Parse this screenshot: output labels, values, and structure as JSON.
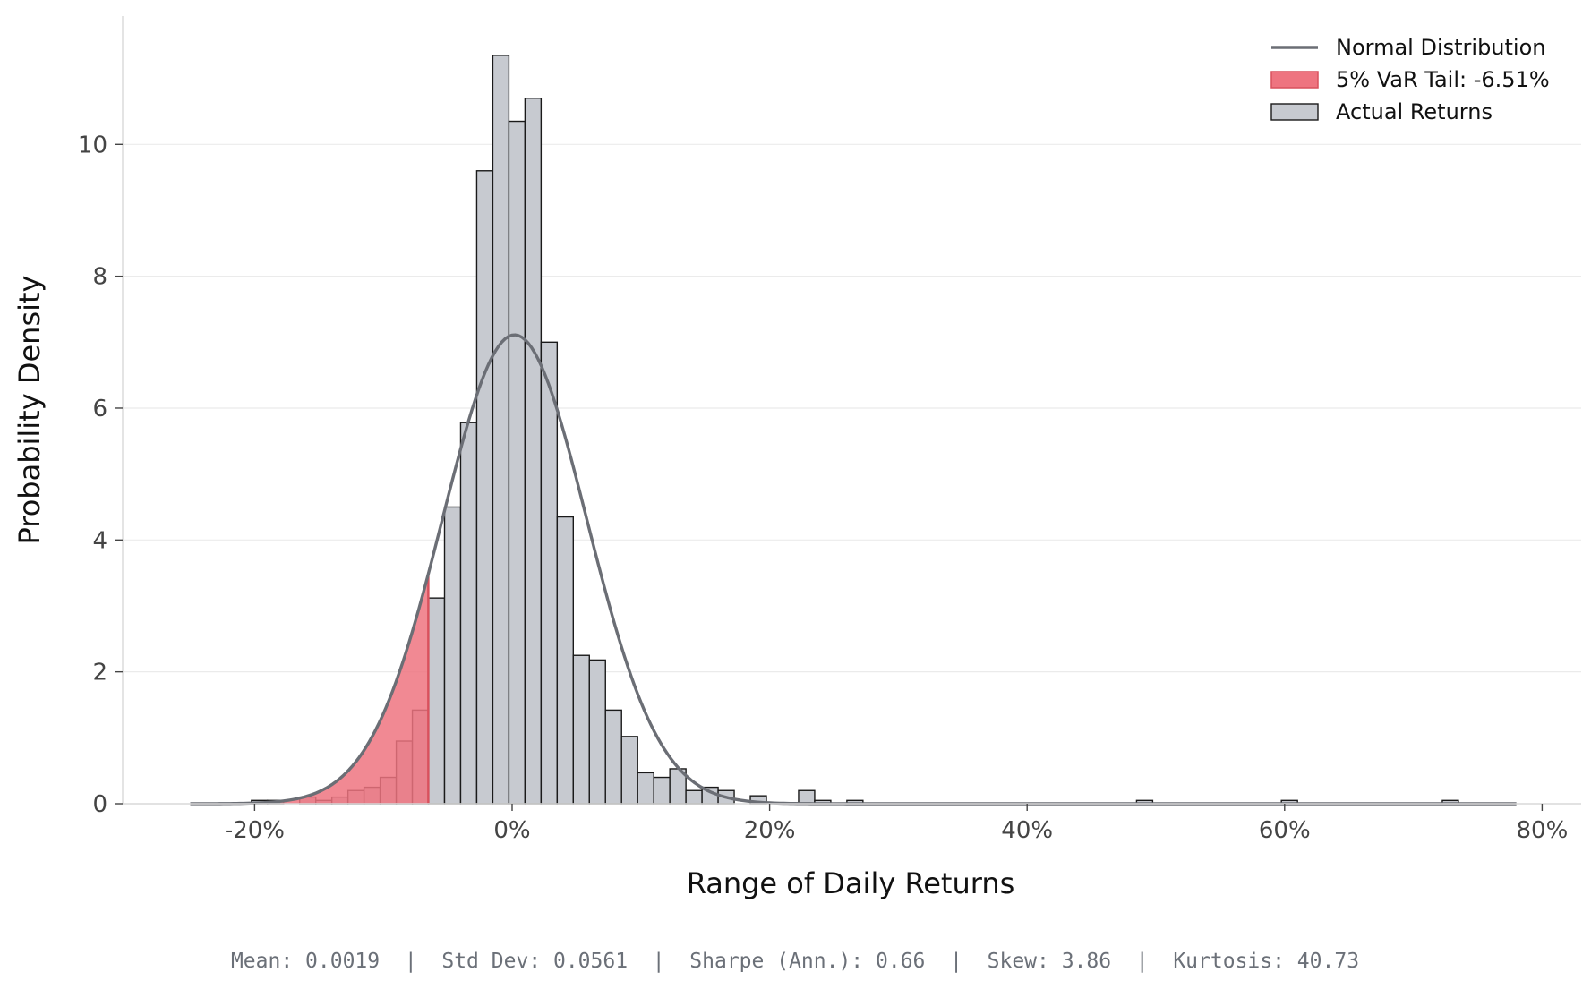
{
  "chart_data": {
    "type": "bar",
    "title": "",
    "xlabel": "Range of Daily Returns",
    "ylabel": "Probability Density",
    "xlim": [
      -0.3,
      0.82
    ],
    "ylim": [
      0,
      12.0
    ],
    "x_ticks": [
      -0.2,
      0.0,
      0.2,
      0.4,
      0.6,
      0.8
    ],
    "x_tick_labels": [
      "-20%",
      "0%",
      "20%",
      "40%",
      "60%",
      "80%"
    ],
    "y_ticks": [
      0,
      2,
      4,
      6,
      8,
      10
    ],
    "y_tick_labels": [
      "0",
      "2",
      "4",
      "6",
      "8",
      "10"
    ],
    "grid": "horizontal",
    "legend_position": "top-right",
    "colors": {
      "bar_fill": "#c7cad0",
      "bar_edge": "#1a1a1a",
      "tail_fill": "#ee7480",
      "tail_edge": "#d9515d",
      "normal_line": "#6b6e75"
    },
    "histogram": {
      "name": "Actual Returns",
      "bin_width": 0.0125,
      "bins": [
        {
          "x0": -0.2025,
          "h": 0.05
        },
        {
          "x0": -0.19,
          "h": 0.05
        },
        {
          "x0": -0.165,
          "h": 0.1
        },
        {
          "x0": -0.1525,
          "h": 0.05
        },
        {
          "x0": -0.14,
          "h": 0.1
        },
        {
          "x0": -0.1275,
          "h": 0.2
        },
        {
          "x0": -0.115,
          "h": 0.25
        },
        {
          "x0": -0.1025,
          "h": 0.4
        },
        {
          "x0": -0.09,
          "h": 0.95
        },
        {
          "x0": -0.0775,
          "h": 1.42
        },
        {
          "x0": -0.065,
          "h": 3.12
        },
        {
          "x0": -0.0525,
          "h": 4.5
        },
        {
          "x0": -0.04,
          "h": 5.78
        },
        {
          "x0": -0.0275,
          "h": 9.6
        },
        {
          "x0": -0.015,
          "h": 11.35
        },
        {
          "x0": -0.0025,
          "h": 10.35
        },
        {
          "x0": 0.01,
          "h": 10.7
        },
        {
          "x0": 0.0225,
          "h": 7.0
        },
        {
          "x0": 0.035,
          "h": 4.35
        },
        {
          "x0": 0.0475,
          "h": 2.25
        },
        {
          "x0": 0.06,
          "h": 2.18
        },
        {
          "x0": 0.0725,
          "h": 1.42
        },
        {
          "x0": 0.085,
          "h": 1.02
        },
        {
          "x0": 0.0975,
          "h": 0.47
        },
        {
          "x0": 0.11,
          "h": 0.4
        },
        {
          "x0": 0.1225,
          "h": 0.53
        },
        {
          "x0": 0.135,
          "h": 0.2
        },
        {
          "x0": 0.1475,
          "h": 0.25
        },
        {
          "x0": 0.16,
          "h": 0.2
        },
        {
          "x0": 0.185,
          "h": 0.12
        },
        {
          "x0": 0.2225,
          "h": 0.2
        },
        {
          "x0": 0.235,
          "h": 0.05
        },
        {
          "x0": 0.26,
          "h": 0.05
        },
        {
          "x0": 0.485,
          "h": 0.05
        },
        {
          "x0": 0.5975,
          "h": 0.05
        },
        {
          "x0": 0.7225,
          "h": 0.05
        }
      ]
    },
    "normal_distribution": {
      "name": "Normal Distribution",
      "mean": 0.0019,
      "std": 0.0561,
      "x_range": [
        -0.25,
        0.78
      ]
    },
    "var_tail": {
      "name": "5% VaR Tail: -6.51%",
      "threshold": -0.0651,
      "x_start": -0.18
    },
    "legend": [
      {
        "label": "Normal Distribution",
        "kind": "line"
      },
      {
        "label": "5% VaR Tail: -6.51%",
        "kind": "tail"
      },
      {
        "label": "Actual Returns",
        "kind": "bar"
      }
    ],
    "stats_line": "Mean: 0.0019  |  Std Dev: 0.0561  |  Sharpe (Ann.): 0.66  |  Skew: 3.86  |  Kurtosis: 40.73"
  }
}
